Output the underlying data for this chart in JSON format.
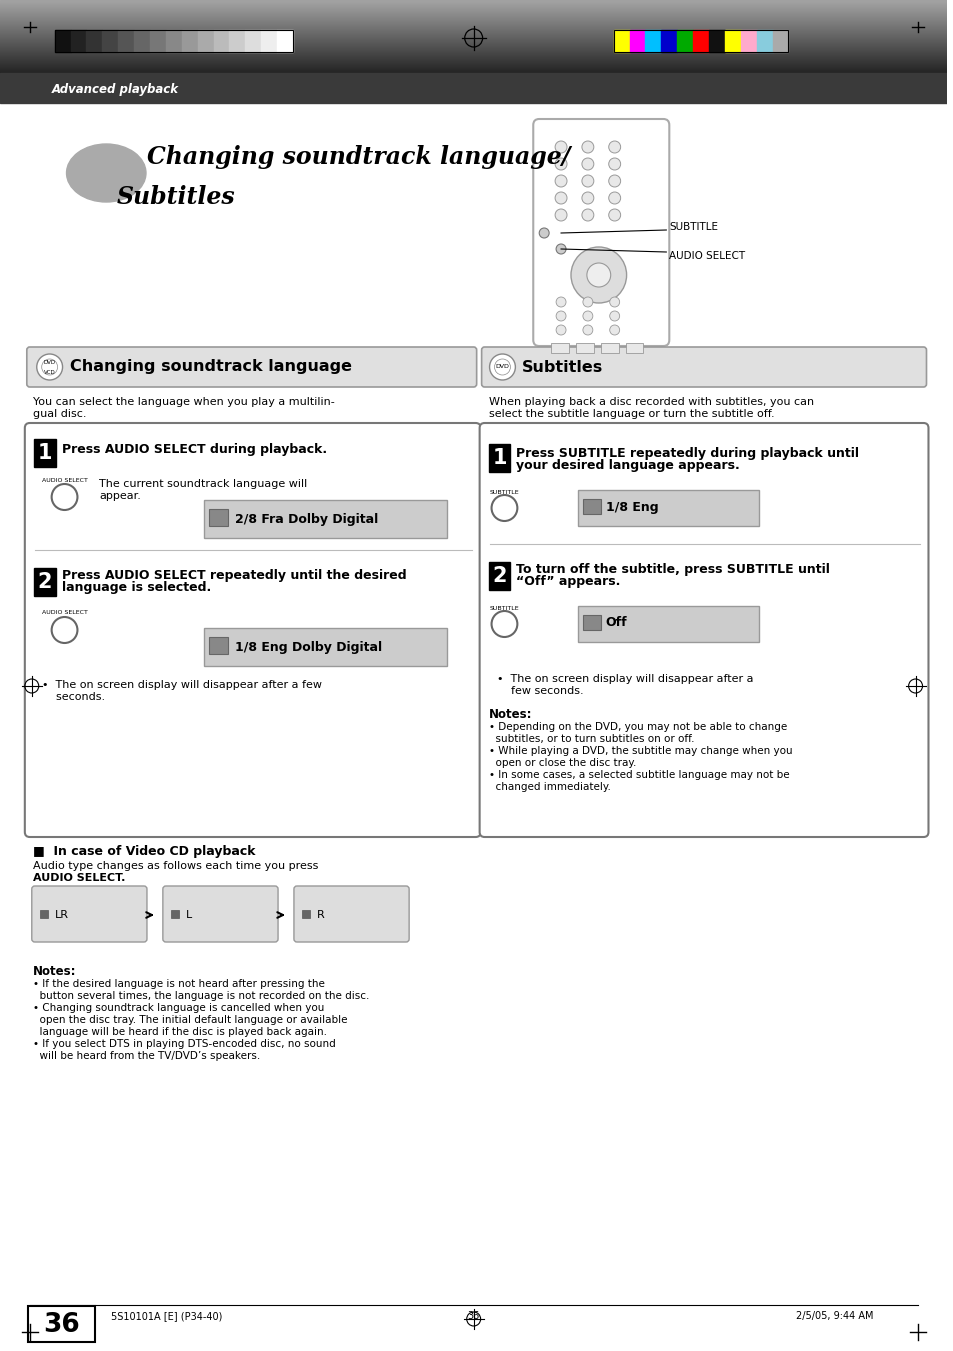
{
  "page_bg": "#ffffff",
  "header_text": "Advanced playback",
  "title_line1": "Changing soundtrack language/",
  "title_line2": "Subtitles",
  "subtitle_label1": "SUBTITLE",
  "subtitle_label2": "AUDIO SELECT",
  "section1_header": "Changing soundtrack language",
  "section2_header": "Subtitles",
  "section1_intro1": "You can select the language when you play a multilin-",
  "section1_intro2": "gual disc.",
  "section2_intro1": "When playing back a disc recorded with subtitles, you can",
  "section2_intro2": "select the subtitle language or turn the subtitle off.",
  "s1_step1_bold": "Press AUDIO SELECT during playback.",
  "s1_step1_desc1": "The current soundtrack language will",
  "s1_step1_desc2": "appear.",
  "s1_step1_display": "2/8 Fra Dolby Digital",
  "s1_step2_bold1": "Press AUDIO SELECT repeatedly until the desired",
  "s1_step2_bold2": "language is selected.",
  "s1_step2_display": "1/8 Eng Dolby Digital",
  "s1_step2_note1": "•  The on screen display will disappear after a few",
  "s1_step2_note2": "    seconds.",
  "s1_vcd_header": "■  In case of Video CD playback",
  "s1_vcd_text1": "Audio type changes as follows each time you press",
  "s1_vcd_text2": "AUDIO SELECT.",
  "s1_vcd_items": [
    "LR",
    "L",
    "R"
  ],
  "s1_notes_title": "Notes:",
  "s1_note1a": "• If the desired language is not heard after pressing the",
  "s1_note1b": "  button several times, the language is not recorded on the disc.",
  "s1_note2a": "• Changing soundtrack language is cancelled when you",
  "s1_note2b": "  open the disc tray. The initial default language or available",
  "s1_note2c": "  language will be heard if the disc is played back again.",
  "s1_note3a": "• If you select DTS in playing DTS-encoded disc, no sound",
  "s1_note3b": "  will be heard from the TV/DVD’s speakers.",
  "s2_step1_bold1": "Press SUBTITLE repeatedly during playback until",
  "s2_step1_bold2": "your desired language appears.",
  "s2_step1_display": "1/8 Eng",
  "s2_step2_bold1": "To turn off the subtitle, press SUBTITLE until",
  "s2_step2_bold2": "“Off” appears.",
  "s2_step2_display": "Off",
  "s2_step2_note1": "•  The on screen display will disappear after a",
  "s2_step2_note2": "    few seconds.",
  "s2_notes_title": "Notes:",
  "s2_note1a": "• Depending on the DVD, you may not be able to change",
  "s2_note1b": "  subtitles, or to turn subtitles on or off.",
  "s2_note2a": "• While playing a DVD, the subtitle may change when you",
  "s2_note2b": "  open or close the disc tray.",
  "s2_note3a": "• In some cases, a selected subtitle language may not be",
  "s2_note3b": "  changed immediately.",
  "page_number": "36",
  "footer_left": "5S10101A [E] (P34-40)",
  "footer_center": "36",
  "footer_right": "2/5/05, 9:44 AM",
  "color_bars_left": [
    "#111111",
    "#222222",
    "#333333",
    "#444444",
    "#555555",
    "#666666",
    "#777777",
    "#888888",
    "#999999",
    "#aaaaaa",
    "#bbbbbb",
    "#cccccc",
    "#dddddd",
    "#eeeeee",
    "#ffffff"
  ],
  "color_bars_right": [
    "#ffff00",
    "#ff00ff",
    "#00bfff",
    "#0000cc",
    "#00aa00",
    "#ff0000",
    "#111111",
    "#ffff00",
    "#ffaacc",
    "#88ccdd",
    "#aaaaaa"
  ]
}
